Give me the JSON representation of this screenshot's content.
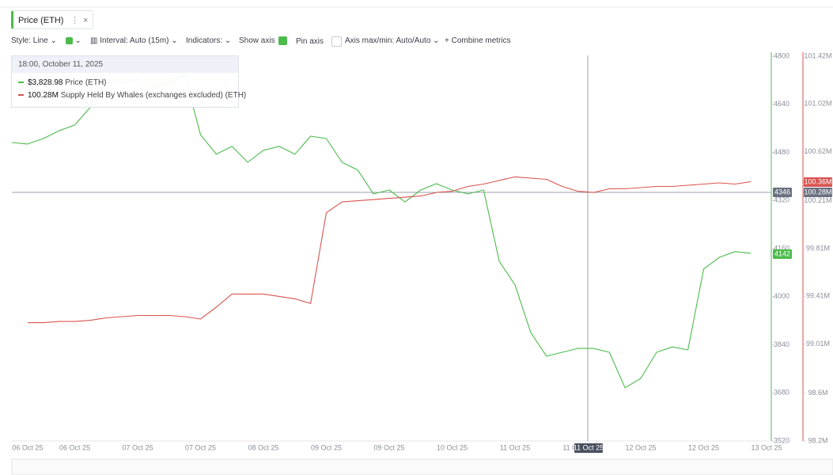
{
  "toolbar": {
    "style": "Style: Line",
    "interval": "Interval: Auto (15m)",
    "indicators": "Indicators:",
    "show_axis": "Show axis",
    "pin_axis": "Pin axis",
    "axis_minmax": "Axis max/min: Auto/Auto",
    "combine": "Combine metrics"
  },
  "tooltip": {
    "time": "18:00, October 11, 2025",
    "values": [
      "$3,828.98",
      "100.28M"
    ]
  },
  "crosshair": {
    "y_label": "4346",
    "y2_label": "100.28M",
    "x_label": "11 Oct 25"
  },
  "last_labels": {
    "y": "4142",
    "y2": "100.36M"
  },
  "chart_data": {
    "type": "line",
    "categories": [
      null,
      "06 Oct 25",
      null,
      null,
      "06 Oct 25",
      null,
      null,
      null,
      "07 Oct 25",
      null,
      null,
      null,
      "07 Oct 25",
      null,
      null,
      null,
      "08 Oct 25",
      null,
      null,
      null,
      "09 Oct 25",
      null,
      null,
      null,
      "09 Oct 25",
      null,
      null,
      null,
      "10 Oct 25",
      null,
      null,
      null,
      "11 Oct 25",
      null,
      null,
      null,
      "11 Oct 25",
      null,
      null,
      null,
      "12 Oct 25",
      null,
      null,
      null,
      "12 Oct 25",
      null,
      null,
      null,
      "13 Oct 25"
    ],
    "series": [
      {
        "name": "Price (ETH)",
        "color": "#4cbb4c",
        "axis": "y",
        "values": [
          4513,
          4508,
          4526,
          4552,
          4571,
          4631,
          4724,
          4710,
          4724,
          4697,
          4710,
          4737,
          4539,
          4474,
          4500,
          4447,
          4487,
          4500,
          4474,
          4534,
          4526,
          4447,
          4421,
          4342,
          4355,
          4315,
          4355,
          4376,
          4355,
          4342,
          4355,
          4118,
          4039,
          3881,
          3802,
          3815,
          3828,
          3828,
          3815,
          3697,
          3728,
          3815,
          3833,
          3823,
          4092,
          4131,
          4150,
          4144,
          null
        ]
      },
      {
        "name": "Supply Held By Whales (exchanges excluded) (ETH)",
        "color": "#d9534f",
        "axis": "y2",
        "values": [
          null,
          99.19,
          99.19,
          99.2,
          99.2,
          99.21,
          99.23,
          99.24,
          99.25,
          99.25,
          99.25,
          99.24,
          99.22,
          99.32,
          99.43,
          99.43,
          99.43,
          99.41,
          99.39,
          99.35,
          100.11,
          100.2,
          100.21,
          100.22,
          100.23,
          100.24,
          100.25,
          100.28,
          100.29,
          100.33,
          100.35,
          100.38,
          100.41,
          100.4,
          100.39,
          100.33,
          100.29,
          100.28,
          100.31,
          100.31,
          100.32,
          100.33,
          100.33,
          100.34,
          100.35,
          100.36,
          100.35,
          100.37,
          null
        ]
      }
    ],
    "ylim": [
      3520,
      4800
    ],
    "yticks": [
      4800,
      4640,
      4480,
      4320,
      4160,
      4000,
      3840,
      3680,
      3520
    ],
    "y2lim": [
      98.2,
      101.42
    ],
    "y2ticks": [
      {
        "value": 101.42,
        "label": "101.42M"
      },
      {
        "value": 101.02,
        "label": "101.02M"
      },
      {
        "value": 100.62,
        "label": "100.62M"
      },
      {
        "value": 100.21,
        "label": "100.21M"
      },
      {
        "value": 99.81,
        "label": "99.81M"
      },
      {
        "value": 99.41,
        "label": "99.41M"
      },
      {
        "value": 99.01,
        "label": "99.01M"
      },
      {
        "value": 98.6,
        "label": "98.6M"
      },
      {
        "value": 98.2,
        "label": "98.2M"
      }
    ],
    "grid": false
  }
}
